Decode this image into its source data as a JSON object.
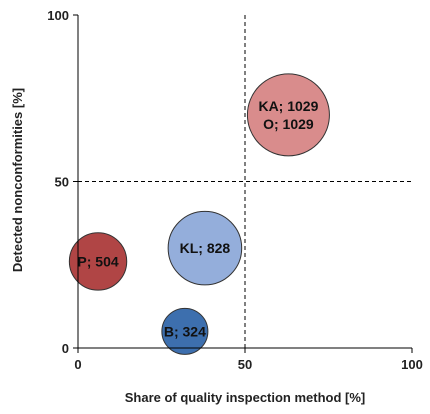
{
  "chart_data": {
    "type": "scatter",
    "title": "",
    "xlabel": "Share of quality inspection method [%]",
    "ylabel": "Detected nonconformities [%]",
    "xlim": [
      0,
      100
    ],
    "ylim": [
      0,
      100
    ],
    "x_ticks": [
      "0",
      "50",
      "100"
    ],
    "y_ticks": [
      "0",
      "50",
      "100"
    ],
    "reference_lines": {
      "x": 50,
      "y": 50,
      "style": "dashed"
    },
    "grid": false,
    "legend": "none",
    "points": [
      {
        "labels": [
          "KA; 1029",
          "O; 1029"
        ],
        "x": 63,
        "y": 70,
        "size": 1029,
        "fill": "#d98c8c",
        "stroke": "#333333"
      },
      {
        "labels": [
          "KL; 828"
        ],
        "x": 38,
        "y": 30,
        "size": 828,
        "fill": "#94aedb",
        "stroke": "#333333"
      },
      {
        "labels": [
          "P; 504"
        ],
        "x": 6,
        "y": 26,
        "size": 504,
        "fill": "#b04545",
        "stroke": "#333333"
      },
      {
        "labels": [
          "B; 324"
        ],
        "x": 32,
        "y": 5,
        "size": 324,
        "fill": "#3d6fae",
        "stroke": "#333333"
      }
    ]
  }
}
